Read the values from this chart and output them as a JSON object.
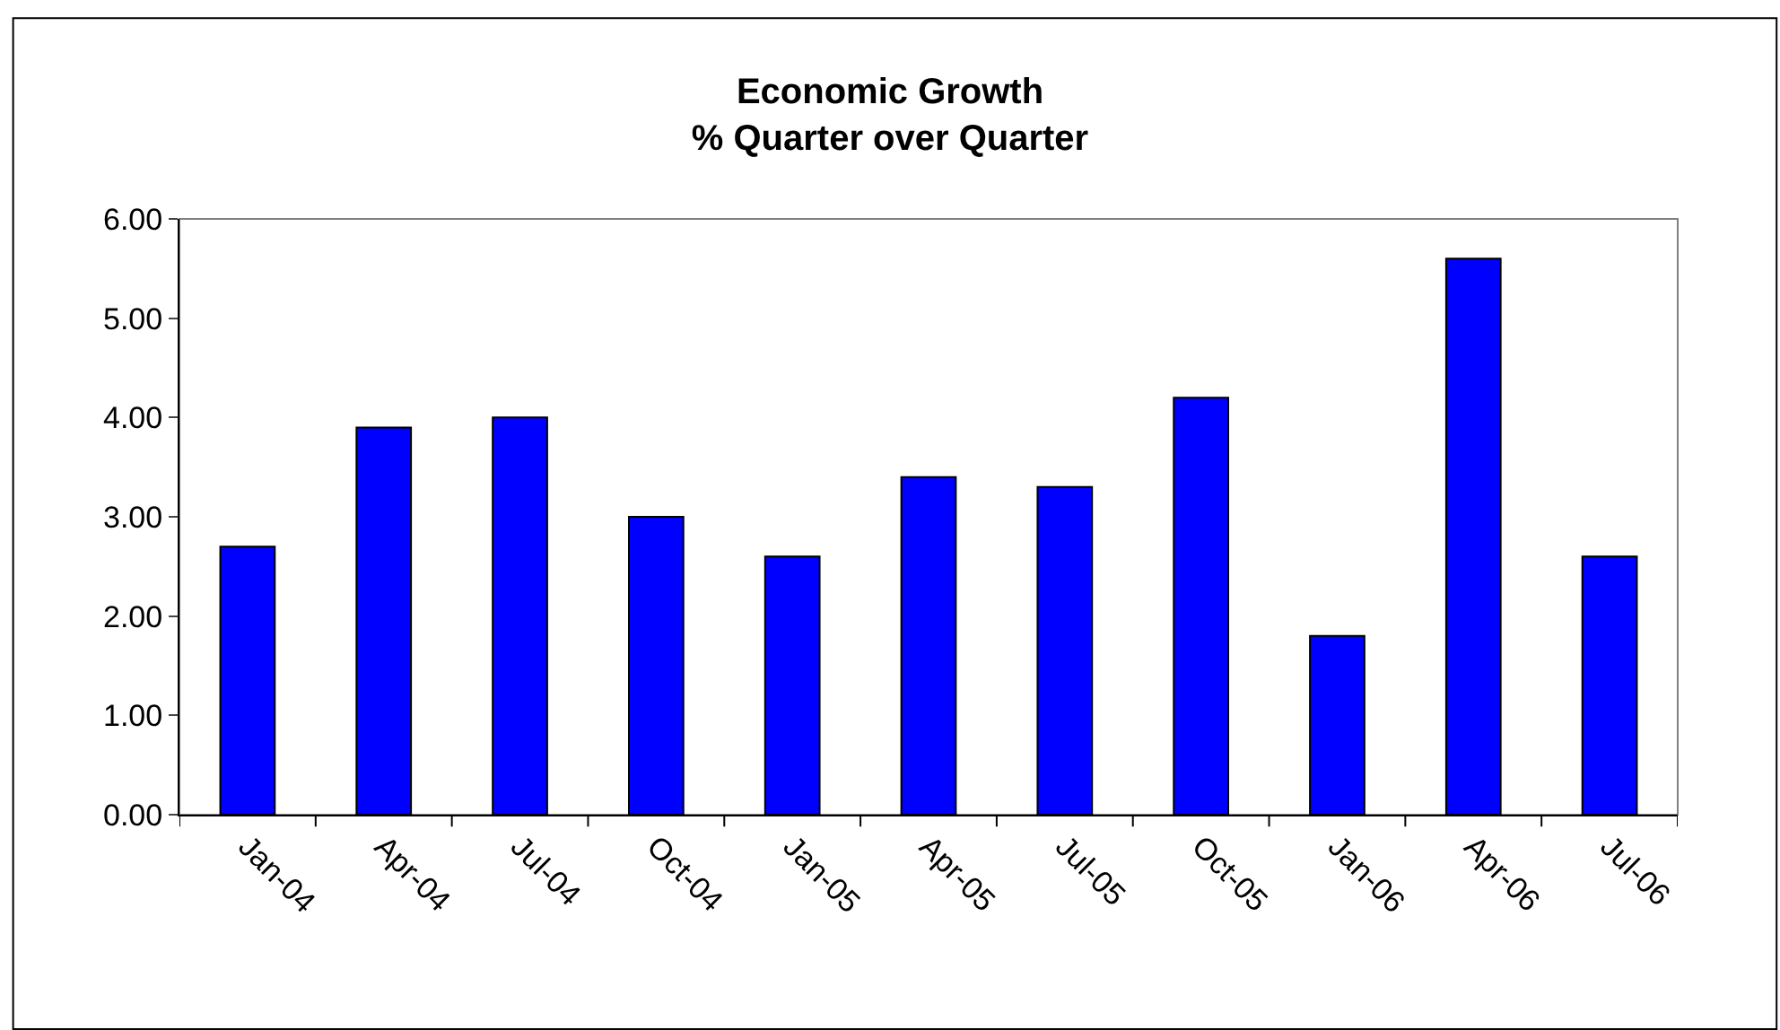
{
  "chart_data": {
    "type": "bar",
    "title": "Economic Growth\n% Quarter over Quarter",
    "categories": [
      "Jan-04",
      "Apr-04",
      "Jul-04",
      "Oct-04",
      "Jan-05",
      "Apr-05",
      "Jul-05",
      "Oct-05",
      "Jan-06",
      "Apr-06",
      "Jul-06"
    ],
    "values": [
      2.7,
      3.9,
      4.0,
      3.0,
      2.6,
      3.4,
      3.3,
      4.2,
      1.8,
      5.6,
      2.6
    ],
    "color": "#0000ff",
    "ylim": [
      0,
      6
    ],
    "yticks": [
      {
        "value": 0,
        "label": "0.00"
      },
      {
        "value": 1,
        "label": "1.00"
      },
      {
        "value": 2,
        "label": "2.00"
      },
      {
        "value": 3,
        "label": "3.00"
      },
      {
        "value": 4,
        "label": "4.00"
      },
      {
        "value": 5,
        "label": "5.00"
      },
      {
        "value": 6,
        "label": "6.00"
      }
    ],
    "grid": false
  }
}
